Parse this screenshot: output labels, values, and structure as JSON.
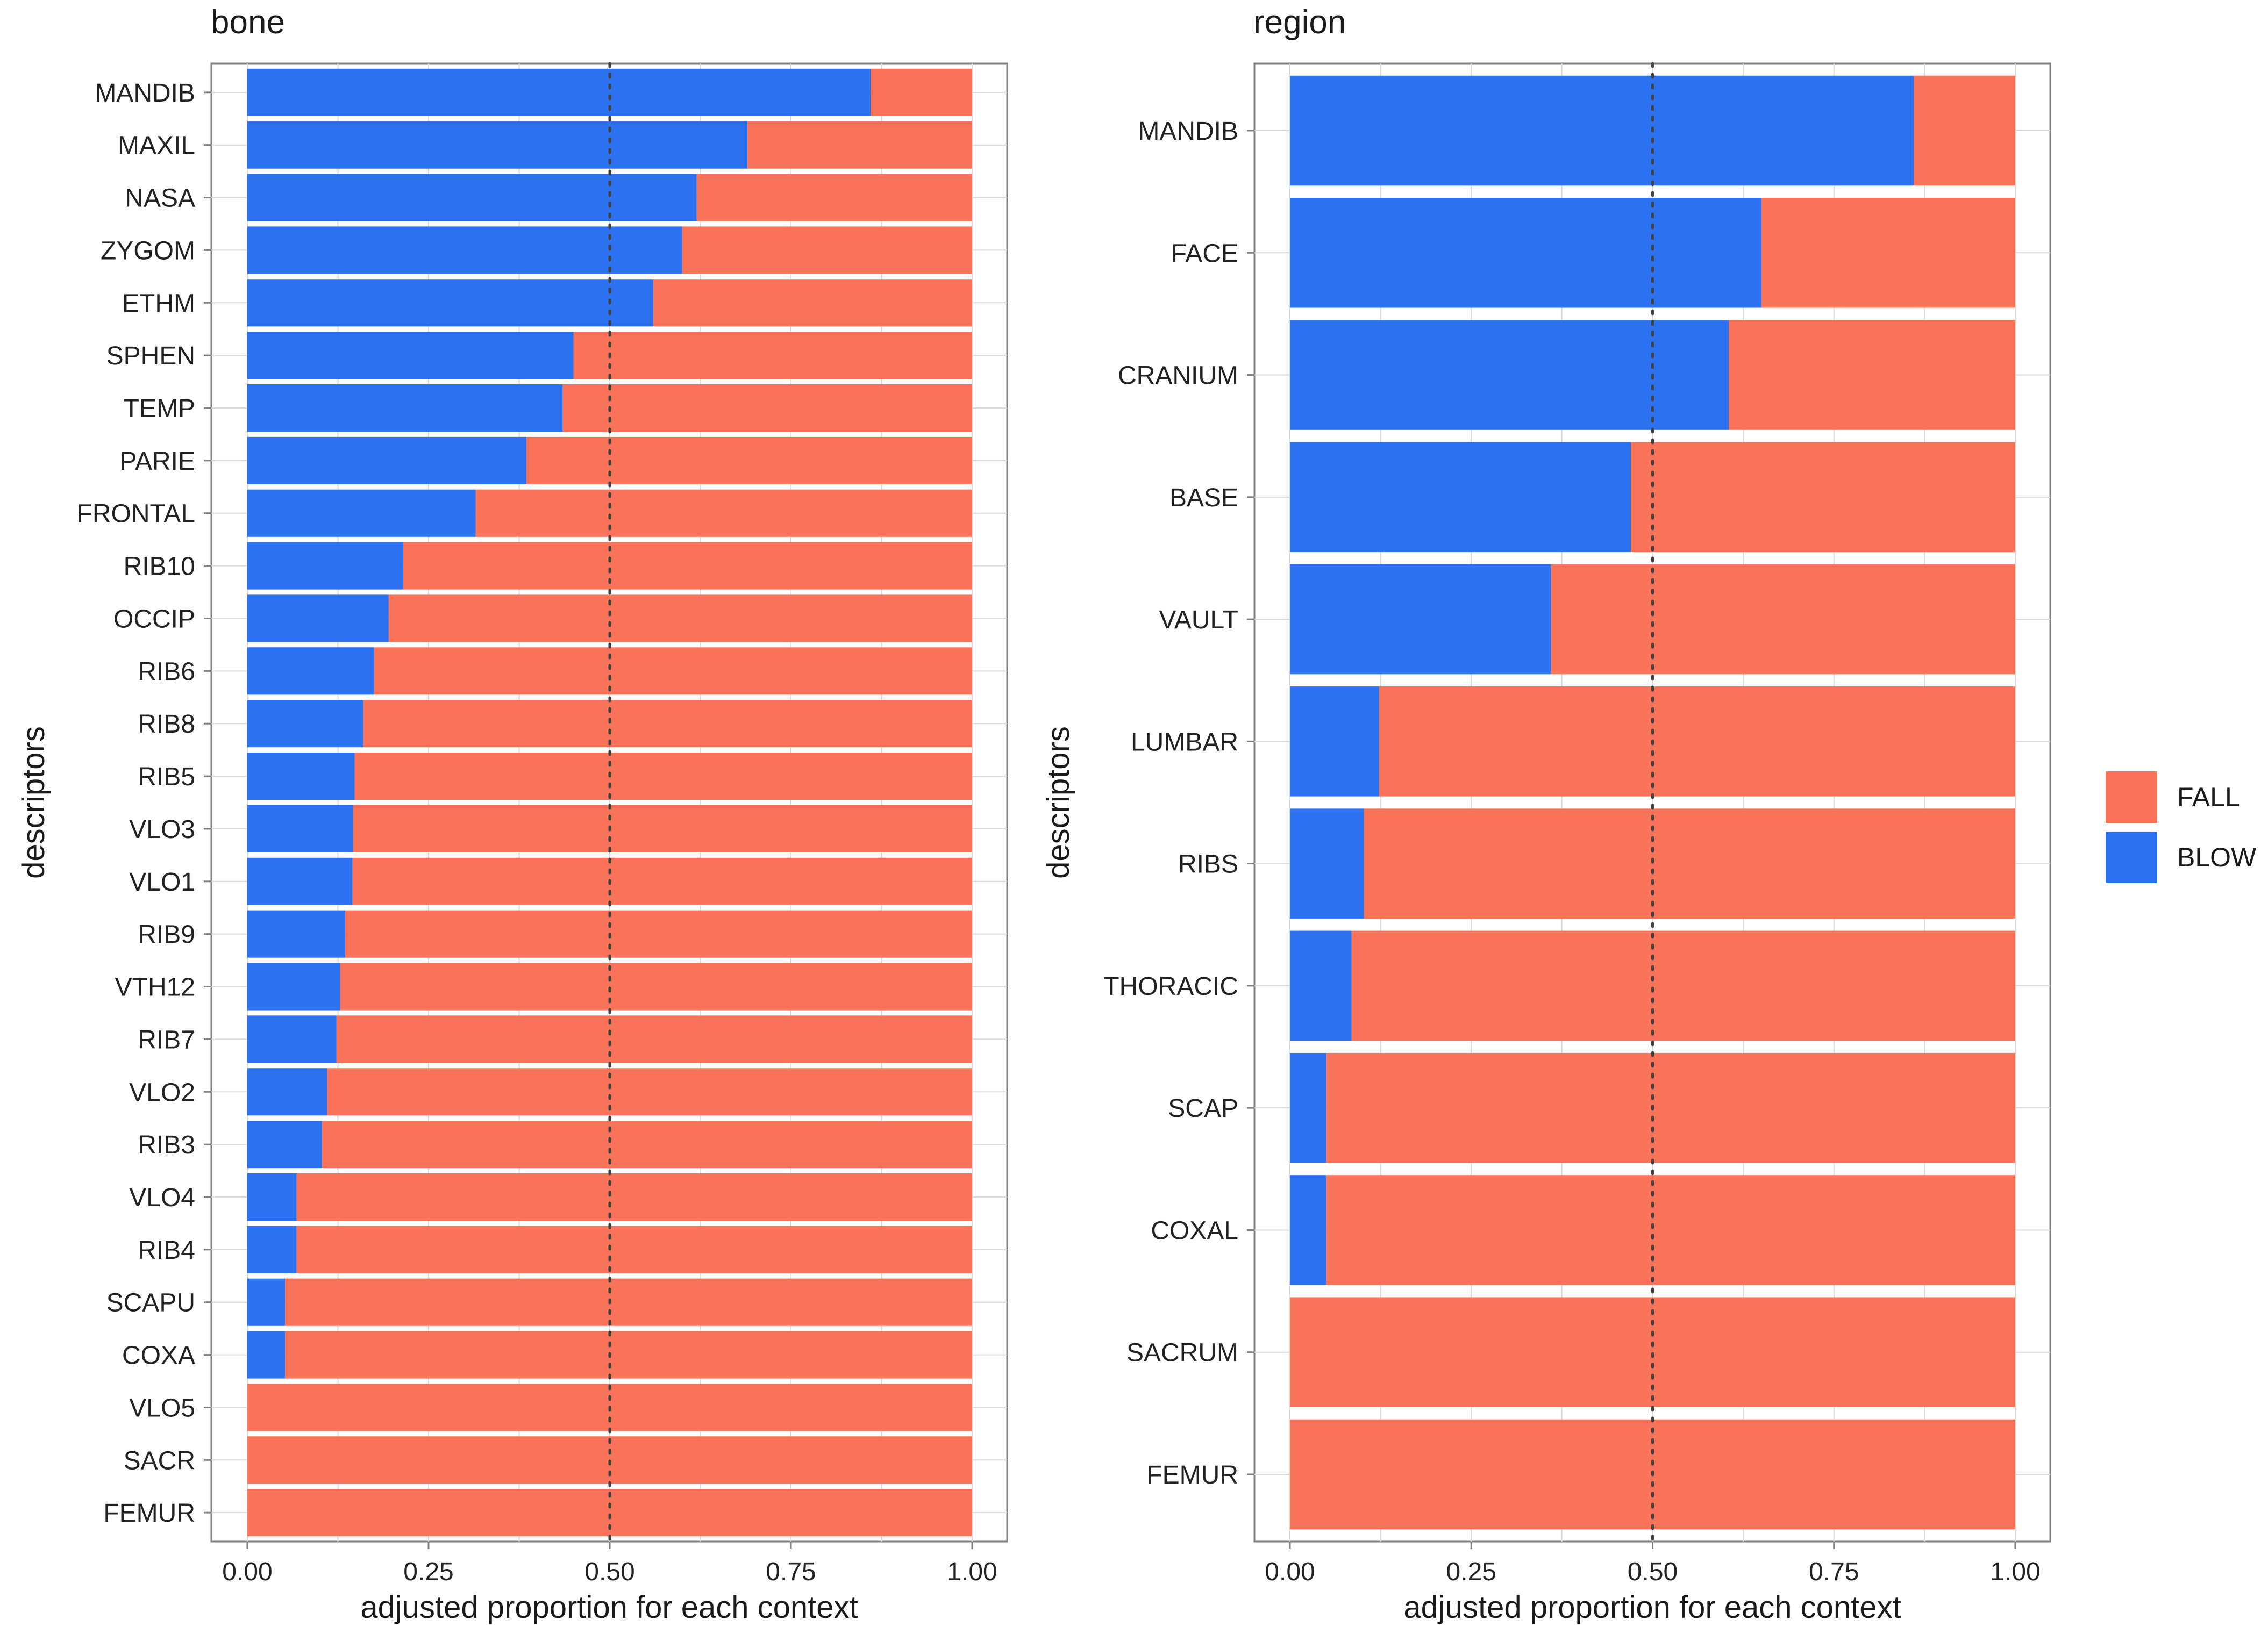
{
  "chart_data": [
    {
      "type": "bar",
      "orientation": "horizontal",
      "stacked": true,
      "title": "bone",
      "xlabel": "adjusted proportion for each context",
      "ylabel": "descriptors",
      "xlim": [
        0,
        1
      ],
      "xticks": [
        "0.00",
        "0.25",
        "0.50",
        "0.75",
        "1.00"
      ],
      "reference_line": 0.5,
      "categories": [
        "MANDIB",
        "MAXIL",
        "NASA",
        "ZYGOM",
        "ETHM",
        "SPHEN",
        "TEMP",
        "PARIE",
        "FRONTAL",
        "RIB10",
        "OCCIP",
        "RIB6",
        "RIB8",
        "RIB5",
        "VLO3",
        "VLO1",
        "RIB9",
        "VTH12",
        "RIB7",
        "VLO2",
        "RIB3",
        "VLO4",
        "RIB4",
        "SCAPU",
        "COXA",
        "VLO5",
        "SACR",
        "FEMUR"
      ],
      "series": [
        {
          "name": "BLOW",
          "values": [
            0.86,
            0.69,
            0.62,
            0.6,
            0.56,
            0.45,
            0.435,
            0.385,
            0.315,
            0.215,
            0.195,
            0.175,
            0.16,
            0.148,
            0.146,
            0.145,
            0.135,
            0.128,
            0.123,
            0.11,
            0.103,
            0.068,
            0.068,
            0.052,
            0.052,
            0,
            0,
            0
          ]
        },
        {
          "name": "FALL",
          "values": [
            0.14,
            0.31,
            0.38,
            0.4,
            0.44,
            0.55,
            0.565,
            0.615,
            0.685,
            0.785,
            0.805,
            0.825,
            0.84,
            0.852,
            0.854,
            0.855,
            0.865,
            0.872,
            0.877,
            0.89,
            0.897,
            0.932,
            0.932,
            0.948,
            0.948,
            1,
            1,
            1
          ]
        }
      ]
    },
    {
      "type": "bar",
      "orientation": "horizontal",
      "stacked": true,
      "title": "region",
      "xlabel": "adjusted proportion for each context",
      "ylabel": "descriptors",
      "xlim": [
        0,
        1
      ],
      "xticks": [
        "0.00",
        "0.25",
        "0.50",
        "0.75",
        "1.00"
      ],
      "reference_line": 0.5,
      "categories": [
        "MANDIB",
        "FACE",
        "CRANIUM",
        "BASE",
        "VAULT",
        "LUMBAR",
        "RIBS",
        "THORACIC",
        "SCAP",
        "COXAL",
        "SACRUM",
        "FEMUR"
      ],
      "series": [
        {
          "name": "BLOW",
          "values": [
            0.86,
            0.65,
            0.605,
            0.47,
            0.36,
            0.123,
            0.102,
            0.085,
            0.05,
            0.05,
            0,
            0
          ]
        },
        {
          "name": "FALL",
          "values": [
            0.14,
            0.35,
            0.395,
            0.53,
            0.64,
            0.877,
            0.898,
            0.915,
            0.95,
            0.95,
            1,
            1
          ]
        }
      ]
    }
  ],
  "legend": {
    "position": "right",
    "items": [
      {
        "label": "FALL",
        "color": "#F8735A"
      },
      {
        "label": "BLOW",
        "color": "#2C71F0"
      }
    ]
  },
  "colors": {
    "BLOW": "#2C71F0",
    "FALL": "#F8735A"
  }
}
